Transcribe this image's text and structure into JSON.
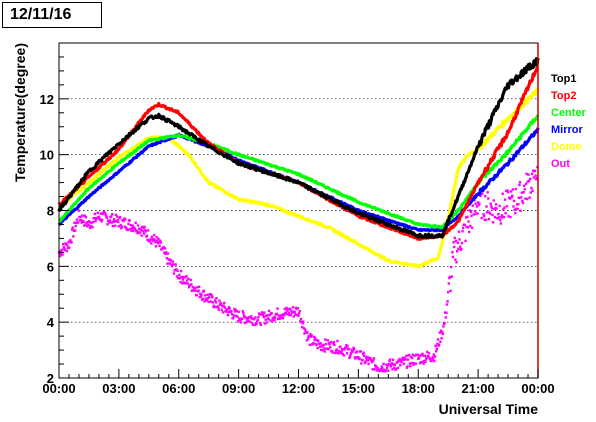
{
  "header": {
    "date": "12/11/16"
  },
  "colors": {
    "Top1": "#000000",
    "Top2": "#ff0000",
    "Center": "#00ff00",
    "Mirror": "#0000ff",
    "Dome": "#ffff00",
    "Out": "#ff00ff",
    "frame": "#000000",
    "right_edge": "#cc0000"
  },
  "chart_data": {
    "type": "line",
    "xlabel": "Universal Time",
    "ylabel": "Temperature(degree)",
    "xlim": [
      0,
      24
    ],
    "ylim": [
      2,
      14
    ],
    "grid": "horizontal dotted",
    "legend": "right, outside plot",
    "x_ticks": [
      0,
      3,
      6,
      9,
      12,
      15,
      18,
      21,
      24
    ],
    "x_tick_labels": [
      "00:00",
      "03:00",
      "06:00",
      "09:00",
      "12:00",
      "15:00",
      "18:00",
      "21:00",
      "00:00"
    ],
    "y_ticks": [
      2,
      4,
      6,
      8,
      10,
      12
    ],
    "y_tick_labels": [
      "2",
      "4",
      "6",
      "8",
      "10",
      "12"
    ],
    "series": [
      {
        "name": "Top1",
        "x": [
          0,
          1.5,
          3,
          4.5,
          5.0,
          6,
          7.5,
          9,
          12,
          15,
          18,
          19.2,
          20,
          21,
          22.5,
          24
        ],
        "y": [
          8.0,
          9.4,
          10.4,
          11.3,
          11.4,
          11.0,
          10.3,
          9.7,
          9.0,
          7.9,
          7.1,
          7.1,
          8.5,
          10.3,
          12.5,
          13.4
        ]
      },
      {
        "name": "Top2",
        "x": [
          0,
          1.5,
          3,
          4.5,
          5.0,
          6,
          7.5,
          9,
          12,
          15,
          18,
          19.2,
          20,
          21,
          22.5,
          24
        ],
        "y": [
          8.2,
          9.2,
          10.2,
          11.6,
          11.8,
          11.5,
          10.4,
          9.7,
          9.0,
          7.8,
          7.0,
          7.1,
          7.6,
          9.0,
          10.8,
          13.2
        ]
      },
      {
        "name": "Center",
        "x": [
          0,
          1.5,
          3,
          4.5,
          6,
          7.5,
          9,
          12,
          15,
          18,
          19.2,
          20,
          21,
          22.5,
          24
        ],
        "y": [
          7.6,
          8.8,
          9.7,
          10.5,
          10.7,
          10.4,
          10.0,
          9.3,
          8.3,
          7.5,
          7.4,
          8.0,
          9.0,
          10.1,
          11.4
        ]
      },
      {
        "name": "Mirror",
        "x": [
          0,
          1.5,
          3,
          4.5,
          6,
          7.5,
          9,
          12,
          15,
          18,
          19.2,
          20,
          21,
          22.5,
          24
        ],
        "y": [
          7.5,
          8.5,
          9.4,
          10.3,
          10.7,
          10.3,
          9.8,
          9.0,
          8.0,
          7.3,
          7.3,
          7.8,
          8.6,
          9.7,
          10.9
        ]
      },
      {
        "name": "Dome",
        "x": [
          0,
          1.5,
          3,
          4.5,
          5.5,
          6.5,
          7.5,
          9,
          10.5,
          12,
          13.5,
          15,
          16.5,
          18,
          19.0,
          19.5,
          20,
          20.5,
          21,
          22.5,
          24
        ],
        "y": [
          8.1,
          9.0,
          9.9,
          10.6,
          10.6,
          10.0,
          9.0,
          8.4,
          8.2,
          7.8,
          7.4,
          6.8,
          6.2,
          6.0,
          6.3,
          7.7,
          9.5,
          10.0,
          10.2,
          11.3,
          12.3
        ]
      },
      {
        "name": "Out",
        "x": [
          0,
          0.5,
          1,
          1.5,
          2,
          3,
          4,
          5,
          5.5,
          6,
          7,
          8,
          9,
          10,
          11,
          12,
          12.5,
          13,
          14,
          15,
          16,
          17,
          18,
          18.8,
          19.3,
          19.8,
          20.5,
          21,
          22,
          23,
          24
        ],
        "y": [
          6.5,
          6.8,
          7.8,
          7.5,
          7.8,
          7.6,
          7.4,
          6.8,
          6.2,
          5.7,
          5.1,
          4.6,
          4.2,
          4.1,
          4.3,
          4.4,
          3.4,
          3.2,
          3.1,
          2.8,
          2.4,
          2.5,
          2.7,
          2.8,
          3.9,
          6.5,
          7.5,
          8.3,
          8.0,
          8.4,
          9.4
        ]
      }
    ]
  }
}
